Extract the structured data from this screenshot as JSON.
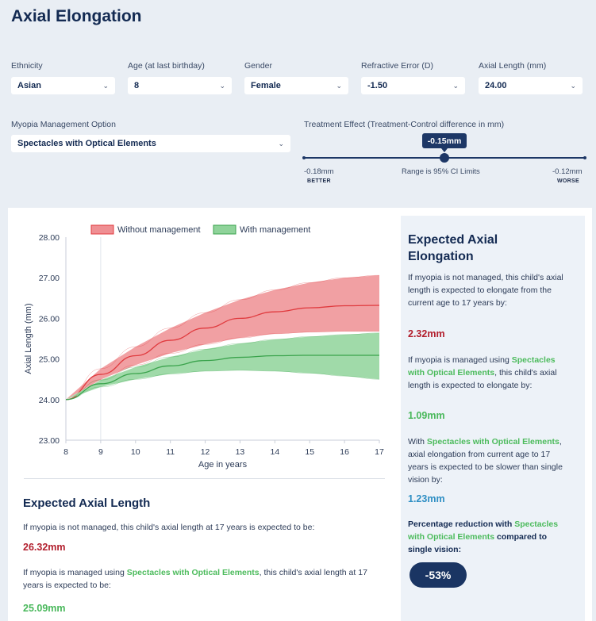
{
  "page": {
    "title": "Axial Elongation"
  },
  "filters": [
    {
      "label": "Ethnicity",
      "value": "Asian"
    },
    {
      "label": "Age (at last birthday)",
      "value": "8"
    },
    {
      "label": "Gender",
      "value": "Female"
    },
    {
      "label": "Refractive Error (D)",
      "value": "-1.50"
    },
    {
      "label": "Axial Length (mm)",
      "value": "24.00"
    }
  ],
  "management": {
    "label": "Myopia Management Option",
    "value": "Spectacles with Optical Elements"
  },
  "treatment": {
    "label": "Treatment Effect (Treatment-Control difference in mm)",
    "current": "-0.15mm",
    "current_value": -0.15,
    "min": "-0.18mm",
    "max": "-0.12mm",
    "min_value": -0.18,
    "max_value": -0.12,
    "range_note": "Range is 95% CI Limits",
    "better": "BETTER",
    "worse": "WORSE"
  },
  "colors": {
    "navy": "#1d3766",
    "red": "#e03a3e",
    "redFill": "#ef8f93",
    "green": "#3aa34c",
    "greenFill": "#8fd39a",
    "valRed": "#b21f2d",
    "valGreen": "#49b85b",
    "valBlue": "#2f8fc4"
  },
  "chart_data": {
    "type": "area",
    "legend": [
      "Without management",
      "With management"
    ],
    "xlabel": "Age in years",
    "ylabel": "Axial Length (mm)",
    "xlim": [
      8,
      17
    ],
    "ylim": [
      23,
      28
    ],
    "x_ticks": [
      8,
      9,
      10,
      11,
      12,
      13,
      14,
      15,
      16,
      17
    ],
    "y_ticks": [
      "23.00",
      "24.00",
      "25.00",
      "26.00",
      "27.00",
      "28.00"
    ],
    "x": [
      8,
      9,
      10,
      11,
      12,
      13,
      14,
      15,
      16,
      17
    ],
    "series": [
      {
        "name": "Without management",
        "mid": [
          24.0,
          24.62,
          25.08,
          25.46,
          25.76,
          26.0,
          26.16,
          26.26,
          26.31,
          26.32
        ],
        "lower": [
          24.0,
          24.49,
          24.85,
          25.14,
          25.36,
          25.52,
          25.62,
          25.66,
          25.68,
          25.68
        ],
        "upper": [
          24.0,
          24.76,
          25.3,
          25.76,
          26.14,
          26.46,
          26.7,
          26.88,
          27.0,
          27.06
        ]
      },
      {
        "name": "With management",
        "mid": [
          24.0,
          24.39,
          24.64,
          24.83,
          24.96,
          25.04,
          25.08,
          25.09,
          25.09,
          25.09
        ],
        "lower": [
          24.0,
          24.31,
          24.5,
          24.63,
          24.7,
          24.72,
          24.7,
          24.65,
          24.58,
          24.5
        ],
        "upper": [
          24.0,
          24.48,
          24.8,
          25.05,
          25.24,
          25.38,
          25.48,
          25.55,
          25.6,
          25.64
        ]
      }
    ]
  },
  "expected_length": {
    "title": "Expected Axial Length",
    "not_managed_text": "If myopia is not managed, this child's axial length at 17 years is expected to be:",
    "not_managed_value": "26.32mm",
    "managed_pre": "If myopia is managed using ",
    "managed_option": "Spectacles with Optical Elements",
    "managed_post": ", this child's axial length at 17 years is expected to be:",
    "managed_value": "25.09mm"
  },
  "sidebar": {
    "title": "Expected Axial Elongation",
    "not_managed_text": "If myopia is not managed, this child's axial length is expected to elongate from the current age to 17 years by:",
    "not_managed_value": "2.32mm",
    "managed_pre": "If myopia is managed using ",
    "managed_option": "Spectacles with Optical Elements",
    "managed_post": ", this child's axial length is expected to elongate by:",
    "managed_value": "1.09mm",
    "slower_pre": "With ",
    "slower_option": "Spectacles with Optical Elements",
    "slower_post": ", axial elongation from current age to 17 years is expected to be slower than single vision by:",
    "slower_value": "1.23mm",
    "reduction_pre": "Percentage reduction with ",
    "reduction_option": "Spectacles with Optical Elements",
    "reduction_post": " compared to single vision:",
    "reduction_value": "-53%"
  }
}
